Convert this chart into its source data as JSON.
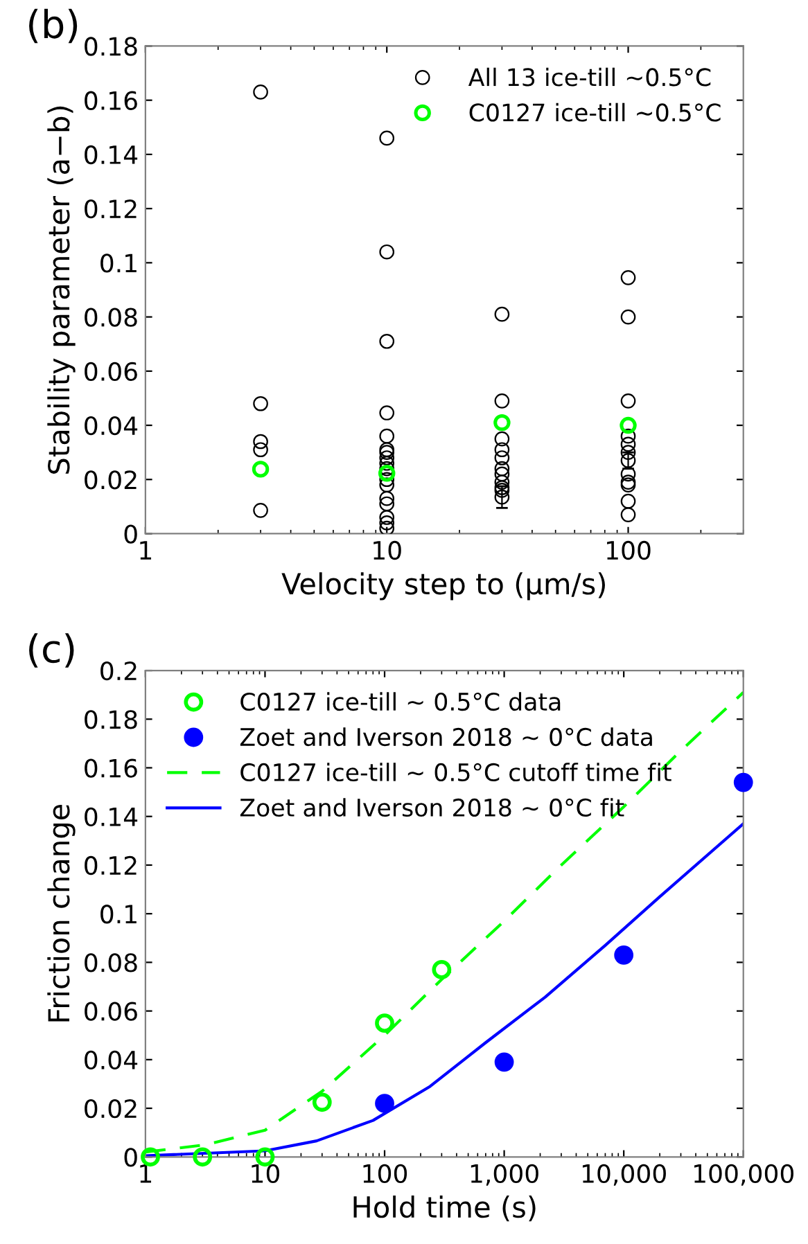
{
  "chart_data": [
    {
      "type": "scatter",
      "ylabel": "Stability parameter (a−b)",
      "xlabel": "Velocity step to (μm/s)",
      "annotations": [
        "(b)"
      ],
      "log": "x",
      "xlim": [
        1,
        300
      ],
      "xticks": [
        1,
        10,
        100
      ],
      "ylim": [
        0,
        0.18
      ],
      "yticks": [
        0,
        0.02,
        0.04,
        0.06,
        0.08,
        0.1,
        0.12,
        0.14,
        0.16,
        0.18
      ],
      "legend": "top right",
      "marker": "circle",
      "grid": false,
      "series": [
        {
          "name": "All 13 ice-till ~0.5°C",
          "color": "#000000",
          "x": [
            3,
            3,
            3,
            3,
            3,
            10,
            10,
            10,
            10,
            10,
            10,
            10,
            10,
            10,
            10,
            10,
            10,
            10,
            10,
            10,
            10,
            10,
            30,
            30,
            30,
            30,
            30,
            30,
            30,
            30,
            30,
            30,
            30,
            100,
            100,
            100,
            100,
            100,
            100,
            100,
            100,
            100,
            100,
            100,
            100
          ],
          "values": [
            0.163,
            0.048,
            0.034,
            0.031,
            0.0086,
            0.146,
            0.104,
            0.071,
            0.0446,
            0.036,
            0.031,
            0.03,
            0.028,
            0.026,
            0.024,
            0.02,
            0.018,
            0.013,
            0.011,
            0.006,
            0.004,
            0.002,
            0.081,
            0.049,
            0.035,
            0.031,
            0.028,
            0.024,
            0.022,
            0.019,
            0.017,
            0.016,
            0.0135,
            0.0945,
            0.08,
            0.049,
            0.036,
            0.033,
            0.03,
            0.027,
            0.022,
            0.019,
            0.018,
            0.012,
            0.007
          ],
          "errors": [
            null,
            null,
            null,
            null,
            null,
            null,
            null,
            null,
            null,
            null,
            null,
            null,
            null,
            null,
            null,
            null,
            null,
            null,
            null,
            null,
            null,
            null,
            null,
            null,
            null,
            null,
            null,
            null,
            null,
            null,
            null,
            null,
            0.004,
            null,
            null,
            null,
            null,
            null,
            null,
            0.003,
            null,
            null,
            null,
            null,
            null
          ]
        },
        {
          "name": "C0127 ice-till ~0.5°C",
          "color": "#00ff00",
          "x": [
            3,
            10,
            30,
            100
          ],
          "values": [
            0.0238,
            0.0223,
            0.041,
            0.04
          ]
        }
      ]
    },
    {
      "type": "line",
      "ylabel": "Friction change",
      "xlabel": "Hold time (s)",
      "annotations": [
        "(c)"
      ],
      "log": "x",
      "xlim": [
        1,
        100000
      ],
      "xticks": [
        1,
        10,
        100,
        {
          "value": 1000,
          "label": "1,000"
        },
        {
          "value": 10000,
          "label": "10,000"
        },
        {
          "value": 100000,
          "label": "100,000"
        }
      ],
      "ylim": [
        0,
        0.2
      ],
      "yticks": [
        0,
        0.02,
        0.04,
        0.06,
        0.08,
        0.1,
        0.12,
        0.14,
        0.16,
        0.18,
        0.2
      ],
      "legend": "top left",
      "grid": false,
      "series": [
        {
          "name": "C0127 ice-till ~ 0.5°C data",
          "type": "scatter",
          "marker": "circle",
          "color": "#00ff00",
          "x": [
            1.1,
            3,
            10,
            30,
            100,
            300
          ],
          "values": [
            0,
            0,
            0,
            0.0225,
            0.055,
            0.077
          ]
        },
        {
          "name": "Zoet and Iverson 2018 ~ 0°C data",
          "type": "scatter",
          "marker": "circle",
          "color": "#0000ff",
          "x": [
            100,
            1000,
            10000,
            100000
          ],
          "values": [
            0.022,
            0.039,
            0.083,
            0.154
          ]
        },
        {
          "name": "C0127 ice-till ~ 0.5°C cutoff time fit",
          "type": "line",
          "line_style": "dashed",
          "color": "#00ff00",
          "x": [
            1,
            3.2,
            10,
            30,
            100,
            300,
            1000,
            3000,
            10000,
            30000,
            100000
          ],
          "values": [
            0.002,
            0.005,
            0.011,
            0.027,
            0.05,
            0.073,
            0.097,
            0.12,
            0.144,
            0.167,
            0.191
          ]
        },
        {
          "name": "Zoet and Iverson 2018 ~ 0°C fit",
          "type": "line",
          "line_style": "solid",
          "color": "#0000ff",
          "x": [
            1,
            10,
            27,
            80,
            240,
            700,
            2200,
            7000,
            20000,
            100000
          ],
          "values": [
            0.0005,
            0.0025,
            0.0066,
            0.015,
            0.029,
            0.047,
            0.0657,
            0.087,
            0.107,
            0.137
          ]
        }
      ]
    }
  ]
}
